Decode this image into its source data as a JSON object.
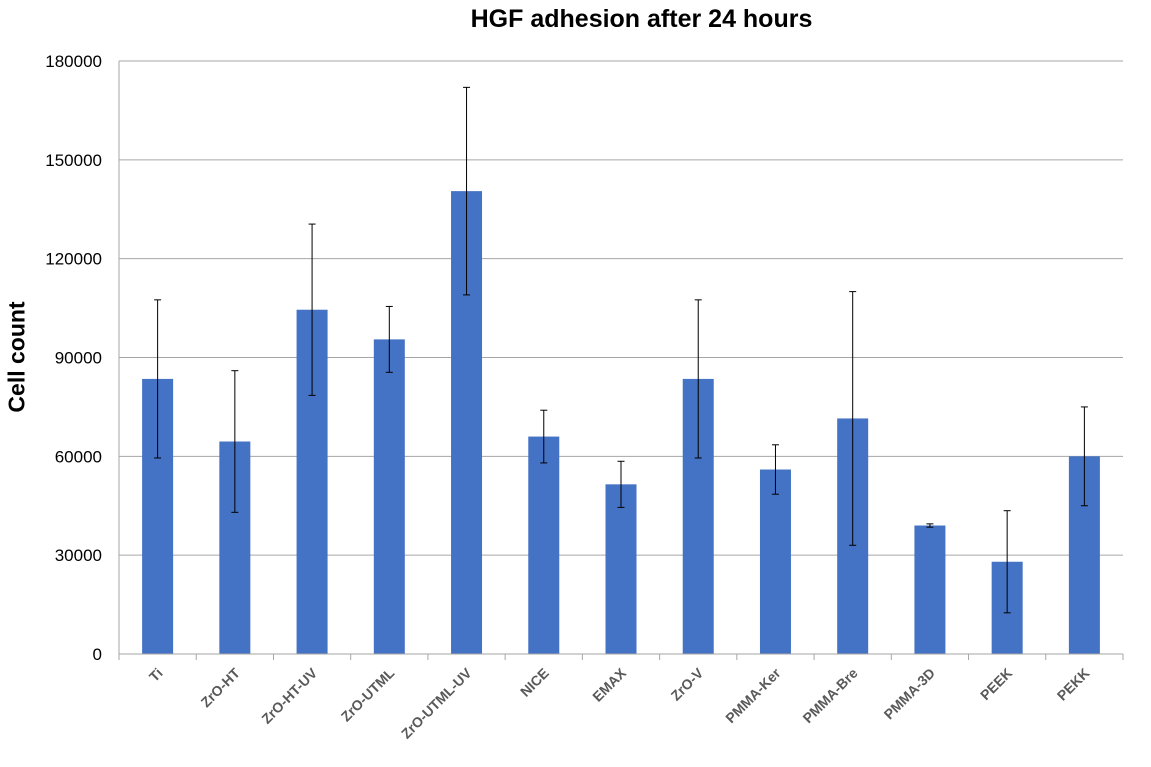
{
  "chart_data": {
    "type": "bar",
    "title": "HGF adhesion after 24 hours",
    "xlabel": "",
    "ylabel": "Cell count",
    "ylim": [
      0,
      180000
    ],
    "yticks": [
      0,
      30000,
      60000,
      90000,
      120000,
      150000,
      180000
    ],
    "grid": true,
    "bar_color": "#4472C4",
    "categories": [
      "Ti",
      "ZrO-HT",
      "ZrO-HT-UV",
      "ZrO-UTML",
      "ZrO-UTML-UV",
      "NICE",
      "EMAX",
      "ZrO-V",
      "PMMA-Ker",
      "PMMA-Bre",
      "PMMA-3D",
      "PEEK",
      "PEKK"
    ],
    "values": [
      83500,
      64500,
      104500,
      95500,
      140500,
      66000,
      51500,
      83500,
      56000,
      71500,
      39000,
      28000,
      60000
    ],
    "error": [
      24000,
      21500,
      26000,
      10000,
      31500,
      8000,
      7000,
      24000,
      7500,
      38500,
      500,
      15500,
      15000
    ]
  }
}
